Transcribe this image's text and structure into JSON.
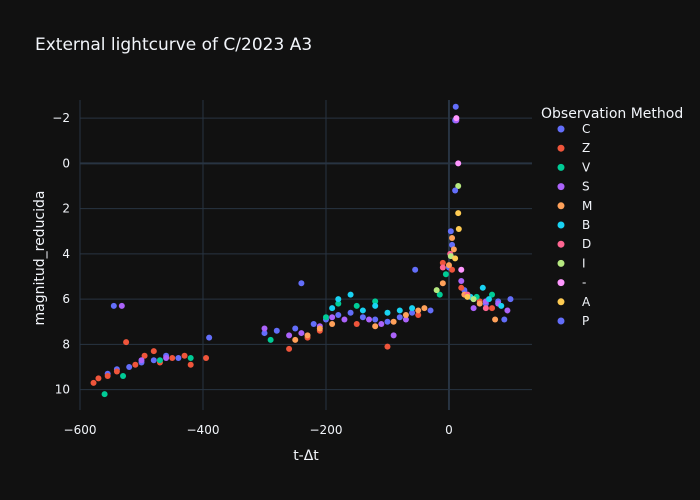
{
  "chart_data": {
    "type": "scatter",
    "title": "External lightcurve of C/2023 A3",
    "xlabel": "t-Δt",
    "ylabel": "magnitud_reducida",
    "xlim": [
      -600,
      135
    ],
    "ylim": [
      -2.8,
      10.9
    ],
    "y_reversed": true,
    "x_ticks": [
      -600,
      -400,
      -200,
      0
    ],
    "x_tick_labels": [
      "−600",
      "−400",
      "−200",
      "0"
    ],
    "y_ticks": [
      -2,
      0,
      2,
      4,
      6,
      8,
      10
    ],
    "y_tick_labels": [
      "−2",
      "0",
      "2",
      "4",
      "6",
      "8",
      "10"
    ],
    "grid": true,
    "legend_title": "Observation Method",
    "legend_position": "top-right",
    "series": [
      {
        "name": "C",
        "color": "#636efa",
        "points": [
          [
            -555,
            9.3
          ],
          [
            -540,
            9.1
          ],
          [
            -520,
            9.0
          ],
          [
            -500,
            8.8
          ],
          [
            -480,
            8.7
          ],
          [
            -460,
            8.5
          ],
          [
            -440,
            8.6
          ],
          [
            -300,
            7.5
          ],
          [
            -280,
            7.4
          ],
          [
            -250,
            7.3
          ],
          [
            -220,
            7.1
          ],
          [
            -200,
            6.9
          ],
          [
            -180,
            6.7
          ],
          [
            -160,
            6.6
          ],
          [
            -140,
            6.8
          ],
          [
            -120,
            6.9
          ],
          [
            -100,
            7.0
          ],
          [
            -80,
            6.8
          ],
          [
            -60,
            6.6
          ],
          [
            0,
            4.6
          ],
          [
            3,
            3.0
          ],
          [
            5,
            3.6
          ],
          [
            10,
            -1.9
          ],
          [
            11,
            -2.5
          ],
          [
            25,
            5.6
          ],
          [
            40,
            6.0
          ],
          [
            60,
            6.2
          ],
          [
            80,
            6.1
          ],
          [
            100,
            6.0
          ]
        ]
      },
      {
        "name": "Z",
        "color": "#ef553b",
        "points": [
          [
            -578,
            9.7
          ],
          [
            -570,
            9.5
          ],
          [
            -555,
            9.4
          ],
          [
            -540,
            9.2
          ],
          [
            -525,
            7.9
          ],
          [
            -510,
            8.9
          ],
          [
            -495,
            8.5
          ],
          [
            -480,
            8.3
          ],
          [
            -470,
            8.8
          ],
          [
            -450,
            8.6
          ],
          [
            -430,
            8.5
          ],
          [
            -420,
            8.9
          ],
          [
            -395,
            8.6
          ],
          [
            -260,
            8.2
          ],
          [
            -230,
            7.7
          ],
          [
            -210,
            7.4
          ],
          [
            -150,
            7.1
          ],
          [
            -100,
            8.1
          ],
          [
            -50,
            6.7
          ],
          [
            -10,
            4.4
          ],
          [
            5,
            4.7
          ],
          [
            20,
            5.5
          ],
          [
            50,
            6.1
          ],
          [
            70,
            6.4
          ]
        ]
      },
      {
        "name": "V",
        "color": "#00cc96",
        "points": [
          [
            -560,
            10.2
          ],
          [
            -530,
            9.4
          ],
          [
            -470,
            8.7
          ],
          [
            -420,
            8.6
          ],
          [
            -290,
            7.8
          ],
          [
            -200,
            6.8
          ],
          [
            -180,
            6.2
          ],
          [
            -150,
            6.3
          ],
          [
            -120,
            6.1
          ],
          [
            -15,
            5.8
          ],
          [
            -5,
            4.9
          ],
          [
            45,
            5.9
          ],
          [
            70,
            5.8
          ]
        ]
      },
      {
        "name": "S",
        "color": "#ab63fa",
        "points": [
          [
            -532,
            6.3
          ],
          [
            -500,
            8.7
          ],
          [
            -460,
            8.6
          ],
          [
            -300,
            7.3
          ],
          [
            -260,
            7.6
          ],
          [
            -240,
            7.5
          ],
          [
            -210,
            7.2
          ],
          [
            -190,
            6.8
          ],
          [
            -170,
            6.9
          ],
          [
            -130,
            6.9
          ],
          [
            -110,
            7.1
          ],
          [
            -90,
            7.6
          ],
          [
            -70,
            6.9
          ],
          [
            12,
            -1.9
          ],
          [
            20,
            5.2
          ],
          [
            30,
            5.8
          ],
          [
            40,
            6.4
          ],
          [
            60,
            6.1
          ],
          [
            80,
            6.2
          ],
          [
            95,
            6.5
          ]
        ]
      },
      {
        "name": "M",
        "color": "#ffa15a",
        "points": [
          [
            -250,
            7.8
          ],
          [
            -230,
            7.6
          ],
          [
            -210,
            7.3
          ],
          [
            -190,
            7.1
          ],
          [
            -120,
            7.2
          ],
          [
            -90,
            7.0
          ],
          [
            -70,
            6.7
          ],
          [
            -50,
            6.5
          ],
          [
            -40,
            6.4
          ],
          [
            -10,
            5.3
          ],
          [
            0,
            4.5
          ],
          [
            5,
            3.3
          ],
          [
            8,
            3.8
          ],
          [
            25,
            5.8
          ],
          [
            50,
            6.2
          ],
          [
            75,
            6.9
          ]
        ]
      },
      {
        "name": "B",
        "color": "#19d3f3",
        "points": [
          [
            -190,
            6.4
          ],
          [
            -180,
            6.0
          ],
          [
            -160,
            5.8
          ],
          [
            -140,
            6.5
          ],
          [
            -120,
            6.3
          ],
          [
            -100,
            6.6
          ],
          [
            -80,
            6.5
          ],
          [
            -60,
            6.4
          ],
          [
            35,
            5.9
          ],
          [
            55,
            5.5
          ],
          [
            65,
            6.0
          ],
          [
            85,
            6.3
          ]
        ]
      },
      {
        "name": "D",
        "color": "#ff6692",
        "points": [
          [
            -10,
            4.6
          ],
          [
            2,
            4.0
          ],
          [
            30,
            5.8
          ],
          [
            60,
            6.4
          ]
        ]
      },
      {
        "name": "I",
        "color": "#b6e880",
        "points": [
          [
            -20,
            5.6
          ],
          [
            3,
            4.1
          ],
          [
            15,
            1.0
          ],
          [
            40,
            6.0
          ]
        ]
      },
      {
        "name": "-",
        "color": "#ff97ff",
        "points": [
          [
            12,
            -2.0
          ],
          [
            15,
            0.0
          ],
          [
            20,
            4.7
          ]
        ]
      },
      {
        "name": "A",
        "color": "#fecb52",
        "points": [
          [
            15,
            2.2
          ],
          [
            16,
            2.9
          ],
          [
            10,
            4.2
          ],
          [
            30,
            5.9
          ]
        ]
      },
      {
        "name": "P",
        "color": "#636efa",
        "points": [
          [
            -545,
            6.3
          ],
          [
            -390,
            7.7
          ],
          [
            -240,
            5.3
          ],
          [
            -55,
            4.7
          ],
          [
            10,
            1.2
          ],
          [
            -30,
            6.5
          ],
          [
            90,
            6.9
          ]
        ]
      }
    ]
  }
}
